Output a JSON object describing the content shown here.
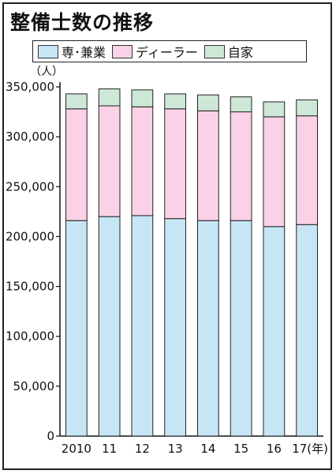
{
  "title": "整備士数の推移",
  "unit_label": "（人）",
  "legend": [
    {
      "label": "専･兼業",
      "color": "#c6e6f6"
    },
    {
      "label": "ディーラー",
      "color": "#fad1e6"
    },
    {
      "label": "自家",
      "color": "#cde8d6"
    }
  ],
  "chart_data": {
    "type": "bar",
    "stacked": true,
    "categories": [
      "2010",
      "11",
      "12",
      "13",
      "14",
      "15",
      "16",
      "17(年)"
    ],
    "series": [
      {
        "name": "専･兼業",
        "color": "#c6e6f6",
        "values": [
          216000,
          220000,
          221000,
          218000,
          216000,
          216000,
          210000,
          212000
        ]
      },
      {
        "name": "ディーラー",
        "color": "#fad1e6",
        "values": [
          112000,
          111000,
          109000,
          110000,
          110000,
          109000,
          110000,
          109000
        ]
      },
      {
        "name": "自家",
        "color": "#cde8d6",
        "values": [
          15000,
          17000,
          17000,
          15000,
          16000,
          15000,
          15000,
          16000
        ]
      }
    ],
    "ylim": [
      0,
      350000
    ],
    "yticks": [
      0,
      50000,
      100000,
      150000,
      200000,
      250000,
      300000,
      350000
    ],
    "ytick_labels": [
      "0",
      "50,000",
      "100,000",
      "150,000",
      "200,000",
      "250,000",
      "300,000",
      "350,000"
    ],
    "grid": false,
    "legend_position": "top"
  }
}
